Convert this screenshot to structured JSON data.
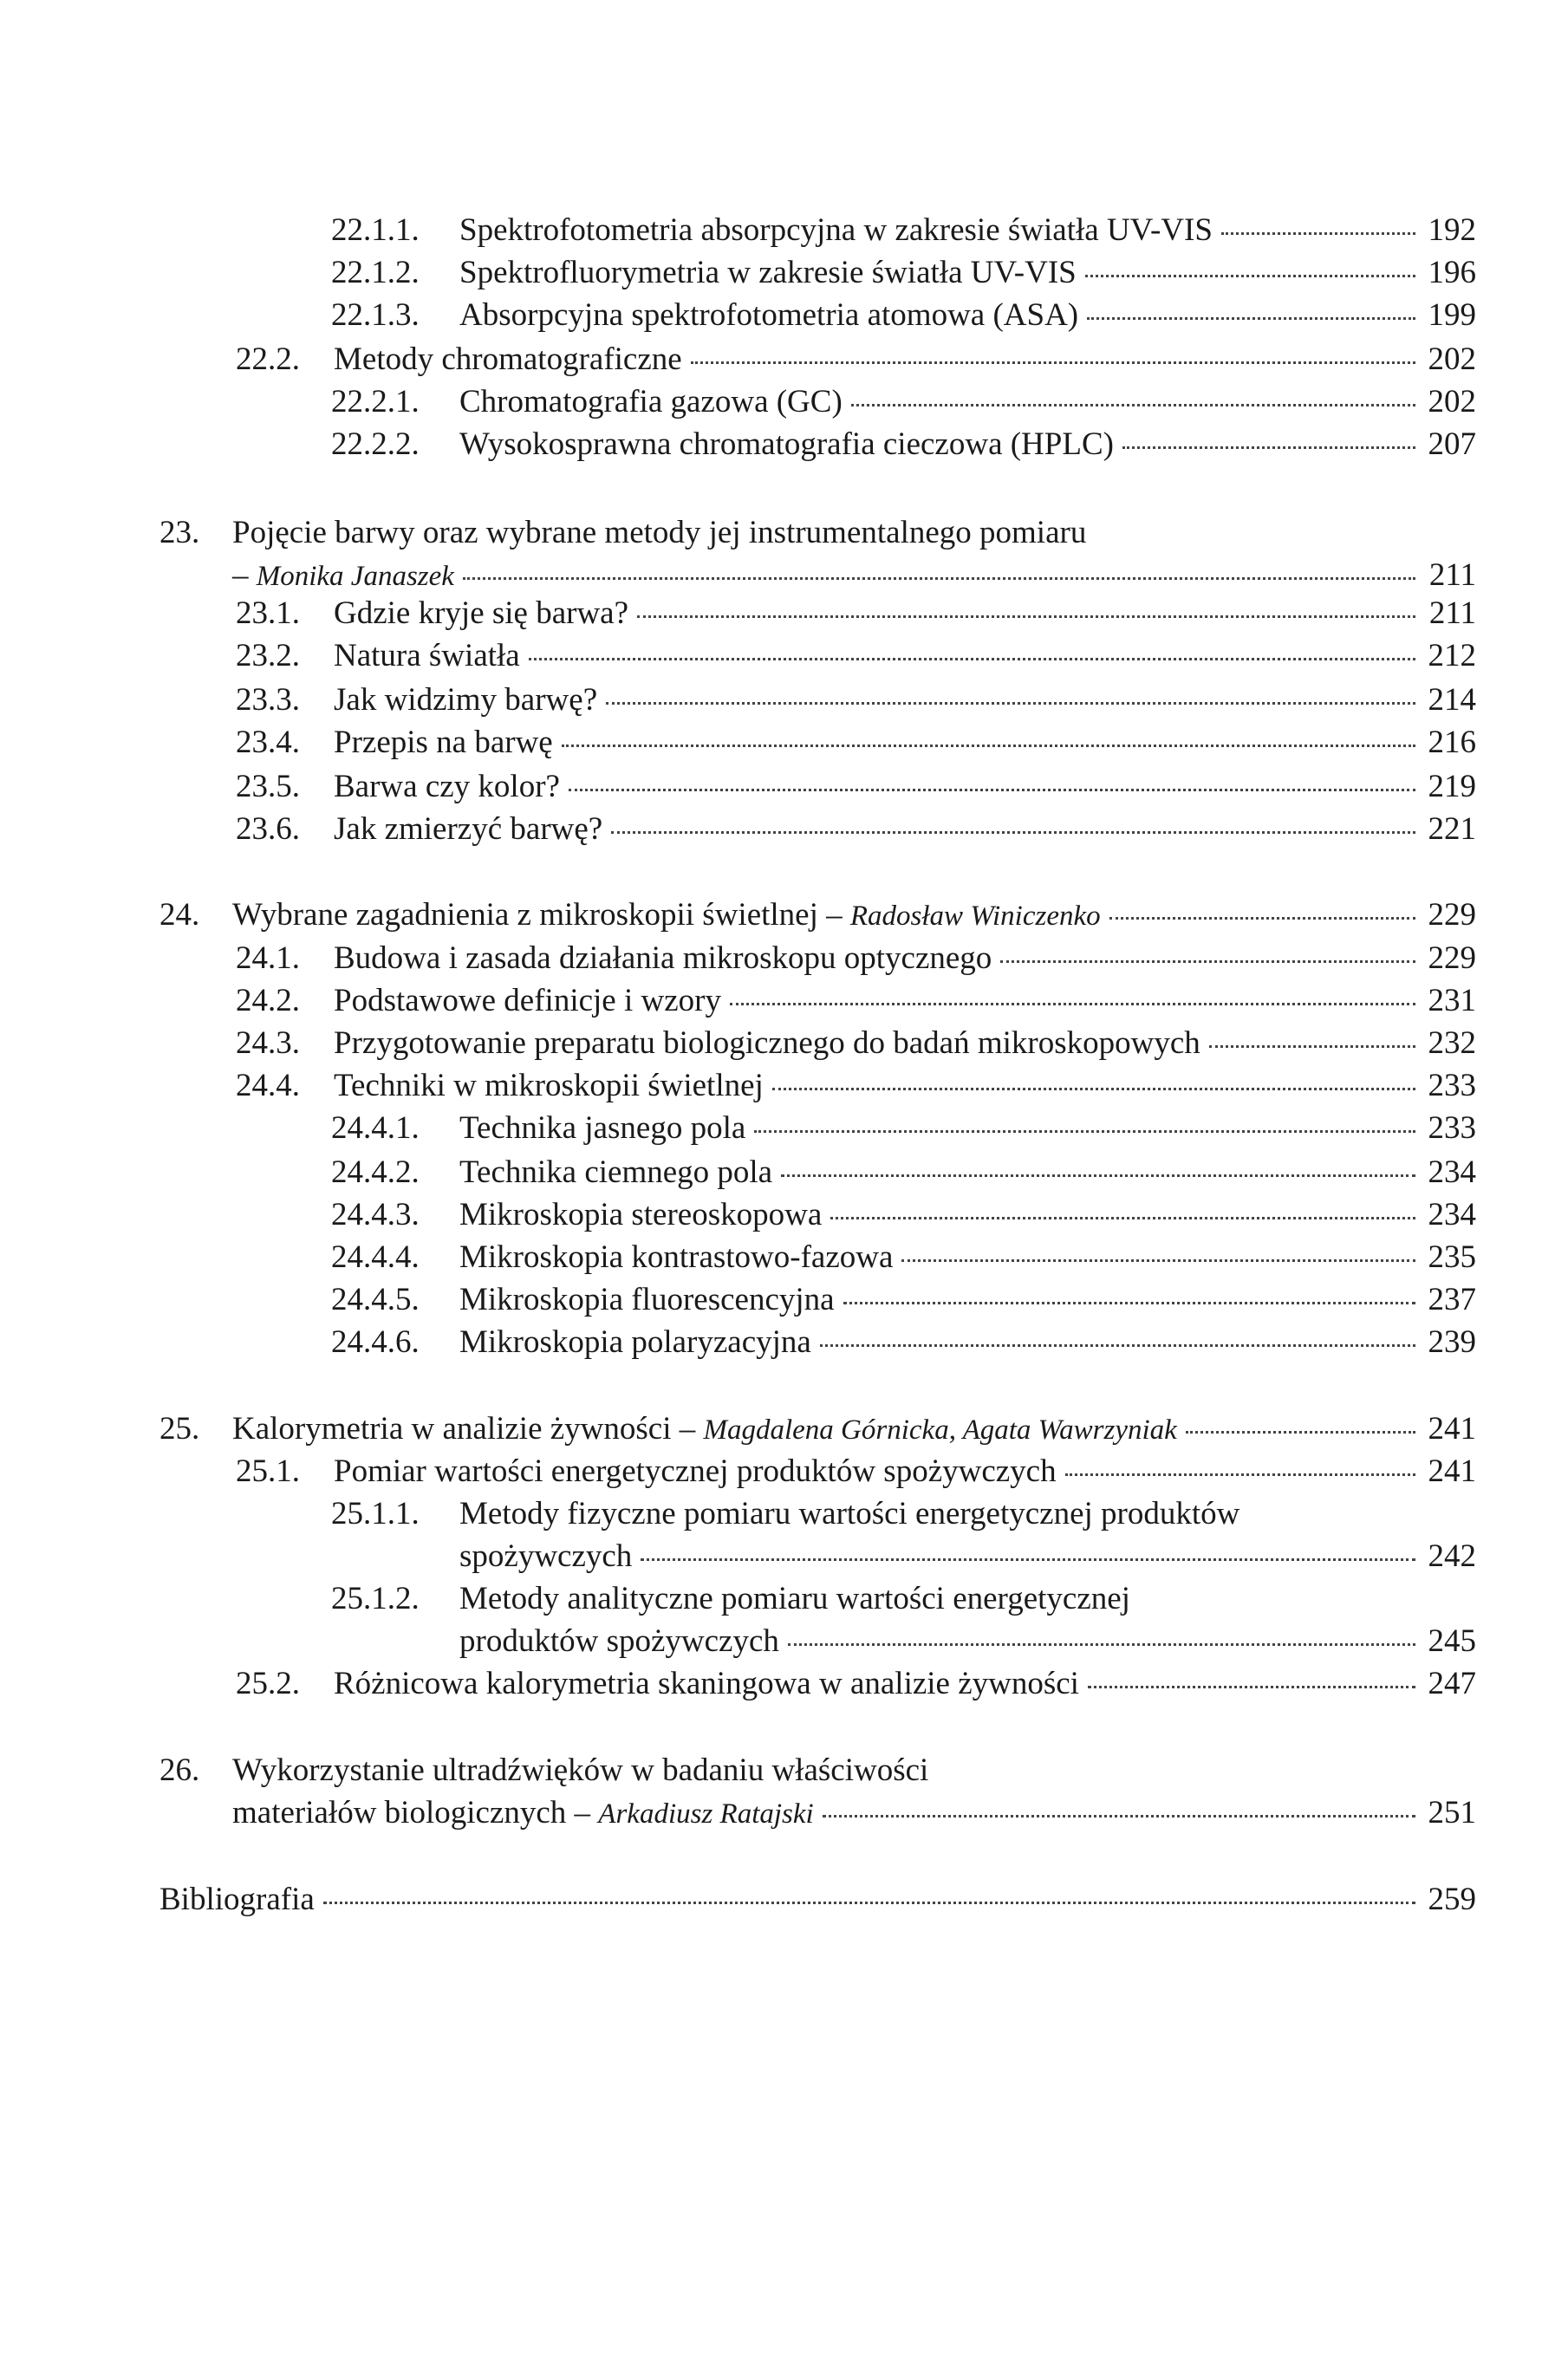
{
  "author_separator": "–",
  "entries": [
    {
      "num": "22.1.1.",
      "lines": [
        "Spektrofotometria absorpcyjna w zakresie światła UV-VIS"
      ],
      "page": "192",
      "level": 3
    },
    {
      "num": "22.1.2.",
      "lines": [
        "Spektrofluorymetria w zakresie światła UV-VIS"
      ],
      "page": "196",
      "level": 3
    },
    {
      "num": "22.1.3.",
      "lines": [
        "Absorpcyjna spektrofotometria atomowa (ASA)"
      ],
      "page": "199",
      "level": 3
    },
    {
      "num": "22.2.",
      "lines": [
        "Metody chromatograficzne"
      ],
      "page": "202",
      "level": 2
    },
    {
      "num": "22.2.1.",
      "lines": [
        "Chromatografia gazowa (GC)"
      ],
      "page": "202",
      "level": 3
    },
    {
      "num": "22.2.2.",
      "lines": [
        "Wysokosprawna chromatografia cieczowa (HPLC)"
      ],
      "page": "207",
      "level": 3
    },
    {
      "num": "23.",
      "lines": [
        "Pojęcie barwy oraz wybrane metody jej instrumentalnego pomiaru",
        ""
      ],
      "author": "Monika Janaszek",
      "page": "211",
      "level": 1
    },
    {
      "num": "23.1.",
      "lines": [
        "Gdzie kryje się barwa?"
      ],
      "page": "211",
      "level": 2
    },
    {
      "num": "23.2.",
      "lines": [
        "Natura światła"
      ],
      "page": "212",
      "level": 2
    },
    {
      "num": "23.3.",
      "lines": [
        "Jak widzimy barwę?"
      ],
      "page": "214",
      "level": 2
    },
    {
      "num": "23.4.",
      "lines": [
        "Przepis na barwę"
      ],
      "page": "216",
      "level": 2
    },
    {
      "num": "23.5.",
      "lines": [
        "Barwa czy kolor?"
      ],
      "page": "219",
      "level": 2
    },
    {
      "num": "23.6.",
      "lines": [
        "Jak zmierzyć barwę?"
      ],
      "page": "221",
      "level": 2
    },
    {
      "num": "24.",
      "lines": [
        "Wybrane zagadnienia z mikroskopii świetlnej"
      ],
      "author": "Radosław Winiczenko",
      "page": "229",
      "level": 1
    },
    {
      "num": "24.1.",
      "lines": [
        "Budowa i zasada działania mikroskopu optycznego"
      ],
      "page": "229",
      "level": 2
    },
    {
      "num": "24.2.",
      "lines": [
        "Podstawowe definicje i wzory"
      ],
      "page": "231",
      "level": 2
    },
    {
      "num": "24.3.",
      "lines": [
        "Przygotowanie preparatu biologicznego do badań mikroskopowych"
      ],
      "page": "232",
      "level": 2
    },
    {
      "num": "24.4.",
      "lines": [
        "Techniki w mikroskopii świetlnej"
      ],
      "page": "233",
      "level": 2
    },
    {
      "num": "24.4.1.",
      "lines": [
        "Technika jasnego pola"
      ],
      "page": "233",
      "level": 3
    },
    {
      "num": "24.4.2.",
      "lines": [
        "Technika ciemnego pola"
      ],
      "page": "234",
      "level": 3
    },
    {
      "num": "24.4.3.",
      "lines": [
        "Mikroskopia stereoskopowa"
      ],
      "page": "234",
      "level": 3
    },
    {
      "num": "24.4.4.",
      "lines": [
        "Mikroskopia kontrastowo-fazowa"
      ],
      "page": "235",
      "level": 3
    },
    {
      "num": "24.4.5.",
      "lines": [
        "Mikroskopia fluorescencyjna"
      ],
      "page": "237",
      "level": 3
    },
    {
      "num": "24.4.6.",
      "lines": [
        "Mikroskopia polaryzacyjna"
      ],
      "page": "239",
      "level": 3
    },
    {
      "num": "25.",
      "lines": [
        "Kalorymetria w analizie żywności"
      ],
      "author": "Magdalena Górnicka, Agata Wawrzyniak",
      "page": "241",
      "level": 1
    },
    {
      "num": "25.1.",
      "lines": [
        "Pomiar wartości energetycznej produktów spożywczych"
      ],
      "page": "241",
      "level": 2
    },
    {
      "num": "25.1.1.",
      "lines": [
        "Metody fizyczne pomiaru wartości energetycznej produktów",
        "spożywczych"
      ],
      "page": "242",
      "level": 3
    },
    {
      "num": "25.1.2.",
      "lines": [
        "Metody analityczne pomiaru wartości energetycznej",
        "produktów spożywczych"
      ],
      "page": "245",
      "level": 3
    },
    {
      "num": "25.2.",
      "lines": [
        "Różnicowa kalorymetria skaningowa w analizie żywności"
      ],
      "page": "247",
      "level": 2
    },
    {
      "num": "26.",
      "lines": [
        "Wykorzystanie ultradźwięków w badaniu właściwości",
        "materiałów biologicznych"
      ],
      "author": "Arkadiusz Ratajski",
      "page": "251",
      "level": 1
    },
    {
      "num": "",
      "lines": [
        "Bibliografia"
      ],
      "page": "259",
      "level": 0
    }
  ]
}
